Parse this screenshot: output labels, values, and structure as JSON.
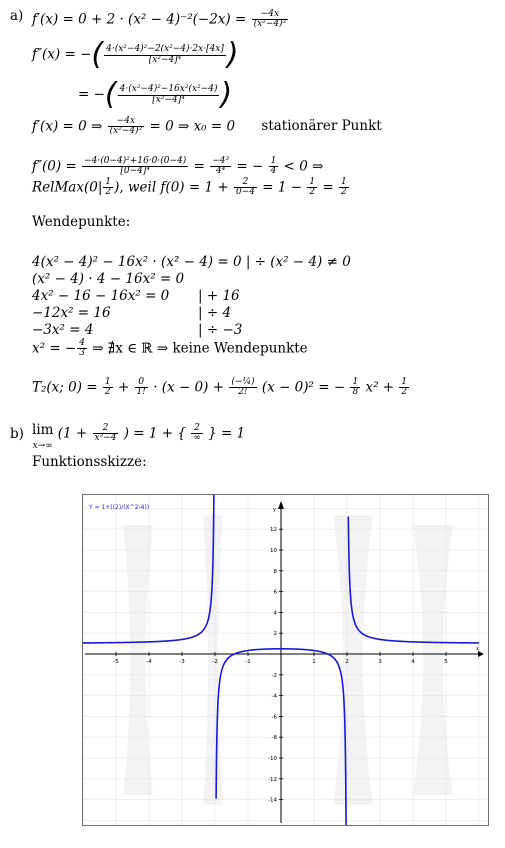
{
  "part_a": {
    "label": "a)",
    "fprime_lhs": "f′(x) = 0 + 2 · (x² − 4)⁻²(−2x) =",
    "fprime_num": "−4x",
    "fprime_den": "(x²−4)²",
    "f2_lhs": "f″(x) = −",
    "f2_num": "4·(x²−4)²−2(x²−4)·2x·[4x]",
    "f2_den": "[x²−4]⁴",
    "f2b_lhs": "= −",
    "f2b_num": "4·(x²−4)²−16x²(x²−4)",
    "f2b_den": "[x²−4]⁴",
    "stat_a": "f′(x) = 0 ⇒",
    "stat_num": "−4x",
    "stat_den": "(x²−4)²",
    "stat_b": "= 0 ⇒ x₀ = 0",
    "stat_label": "stationärer Punkt",
    "f2zero_a": "f″(0) =",
    "f2zero_num": "−4·(0−4)²+16·0·(0−4)",
    "f2zero_den": "[0−4]⁴",
    "f2zero_b": "=",
    "f2zero_num2": "−4³",
    "f2zero_den2": "4⁴",
    "f2zero_c": "= −",
    "f2zero_num3": "1",
    "f2zero_den3": "4",
    "f2zero_d": "< 0 ⇒",
    "relmax_a": "RelMax(0|",
    "relmax_num": "1",
    "relmax_den": "2",
    "relmax_b": "), weil f(0) = 1 +",
    "relmax_num2": "2",
    "relmax_den2": "0−4",
    "relmax_c": "= 1 −",
    "relmax_num3": "1",
    "relmax_den3": "2",
    "relmax_d": "=",
    "relmax_num4": "1",
    "relmax_den4": "2",
    "wendepunkte_title": "Wendepunkte:",
    "w1": "4(x² − 4)² − 16x² · (x² − 4) = 0   | ÷ (x² − 4) ≠ 0",
    "w2": "(x² − 4) · 4 − 16x² = 0",
    "w3a": "4x² − 16 − 16x² = 0",
    "w3b": "| + 16",
    "w4a": "−12x² = 16",
    "w4b": "| ÷ 4",
    "w5a": "−3x² = 4",
    "w5b": "| ÷ −3",
    "w6a": "x² = −",
    "w6_num": "4",
    "w6_den": "3",
    "w6b": "⇒ ∄x ∈ ℝ ⇒ keine Wendepunkte",
    "t2_a": "T₂(x; 0) =",
    "t2_n1": "1",
    "t2_d1": "2",
    "t2_b": "+",
    "t2_n2": "0",
    "t2_d2": "1!",
    "t2_c": "· (x − 0) +",
    "t2_n3": "(−¼)",
    "t2_d3": "2!",
    "t2_d": "(x − 0)² = −",
    "t2_n4": "1",
    "t2_d4": "8",
    "t2_e": "x² +",
    "t2_n5": "1",
    "t2_d5": "2"
  },
  "part_b": {
    "label": "b)",
    "lim_word": "lim",
    "lim_sub": "x→∞",
    "lim_a": "(1 +",
    "lim_num": "2",
    "lim_den": "x²−4",
    "lim_b": ") = 1 + {",
    "lim_num2": "2",
    "lim_den2": "∞",
    "lim_c": "} = 1",
    "sketch_title": "Funktionsskizze:"
  },
  "chart_data": {
    "type": "line",
    "title": "Y = 1+((2)/(X^2-4))",
    "function": "1 + 2/(x^2 - 4)",
    "xlabel": "x",
    "ylabel": "y",
    "xlim": [
      -6,
      6
    ],
    "ylim": [
      -14,
      14
    ],
    "x_ticks": [
      -5,
      -4,
      -3,
      -2,
      -1,
      1,
      2,
      3,
      4,
      5
    ],
    "y_ticks": [
      -14,
      -12,
      -10,
      -8,
      -6,
      -4,
      -2,
      2,
      4,
      6,
      8,
      10,
      12
    ],
    "vertical_asymptotes": [
      -2,
      2
    ],
    "horizontal_asymptote": 1,
    "grid": true,
    "line_color": "#1a1ad0"
  }
}
